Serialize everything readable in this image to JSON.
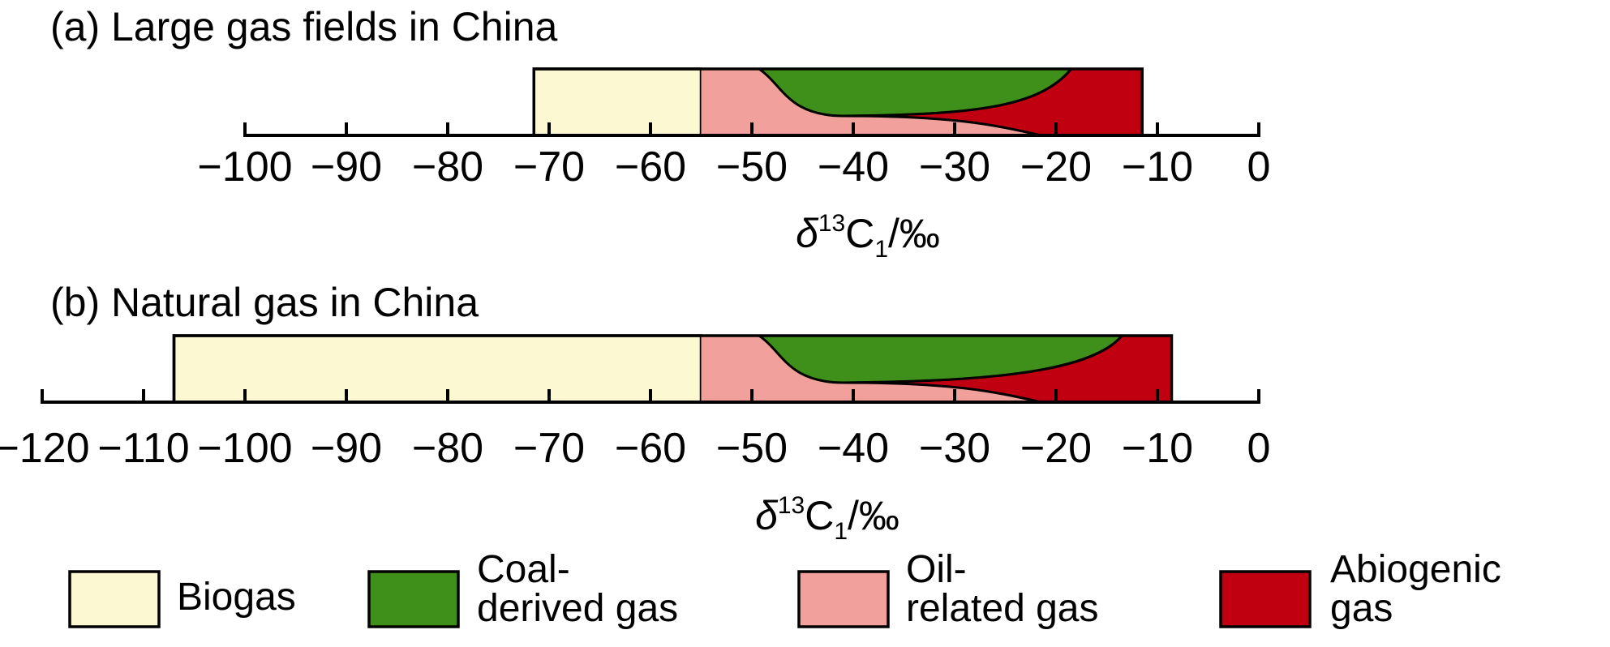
{
  "colors": {
    "biogas": "#fbf8d2",
    "coal": "#3f8f1b",
    "oil": "#f1a09c",
    "abiogenic": "#c00010"
  },
  "chart_data": [
    {
      "type": "area",
      "title": "(a) Large gas fields in China",
      "xlabel": "δ13C1/‰",
      "xlim": [
        -100,
        0
      ],
      "ticks": [
        -100,
        -90,
        -80,
        -70,
        -60,
        -50,
        -40,
        -30,
        -20,
        -10,
        0
      ],
      "tick_labels": [
        "−100",
        "−90",
        "−80",
        "−70",
        "−60",
        "−50",
        "−40",
        "−30",
        "−20",
        "−10",
        "0"
      ],
      "regions": [
        {
          "key": "biogas",
          "from": -71.5,
          "to": -55
        },
        {
          "key": "oil",
          "from": -55,
          "to": -11.5
        },
        {
          "key": "coal",
          "upper_left": -49.3,
          "upper_right": -18.5,
          "nose": -38.5
        },
        {
          "key": "abiogenic",
          "upper_left": -18.5,
          "upper_right": -11.5,
          "lower_left": -21.5
        }
      ]
    },
    {
      "type": "area",
      "title": "(b) Natural gas in China",
      "xlabel": "δ13C1/‰",
      "xlim": [
        -120,
        0
      ],
      "ticks": [
        -120,
        -110,
        -100,
        -90,
        -80,
        -70,
        -60,
        -50,
        -40,
        -30,
        -20,
        -10,
        0
      ],
      "tick_labels": [
        "−120",
        "−110",
        "−100",
        "−90",
        "−80",
        "−70",
        "−60",
        "−50",
        "−40",
        "−30",
        "−20",
        "−10",
        "0"
      ],
      "regions": [
        {
          "key": "biogas",
          "from": -107,
          "to": -55
        },
        {
          "key": "oil",
          "from": -55,
          "to": -8.6
        },
        {
          "key": "coal",
          "upper_left": -49.3,
          "upper_right": -13.5,
          "nose": -38.5
        },
        {
          "key": "abiogenic",
          "upper_left": -13.5,
          "upper_right": -8.6,
          "lower_left": -21.5
        }
      ]
    }
  ],
  "legend": [
    {
      "key": "biogas",
      "lines": [
        "Biogas"
      ]
    },
    {
      "key": "coal",
      "lines": [
        "Coal-",
        "derived gas"
      ]
    },
    {
      "key": "oil",
      "lines": [
        "Oil-",
        "related gas"
      ]
    },
    {
      "key": "abiogenic",
      "lines": [
        "Abiogenic",
        "gas"
      ]
    }
  ]
}
